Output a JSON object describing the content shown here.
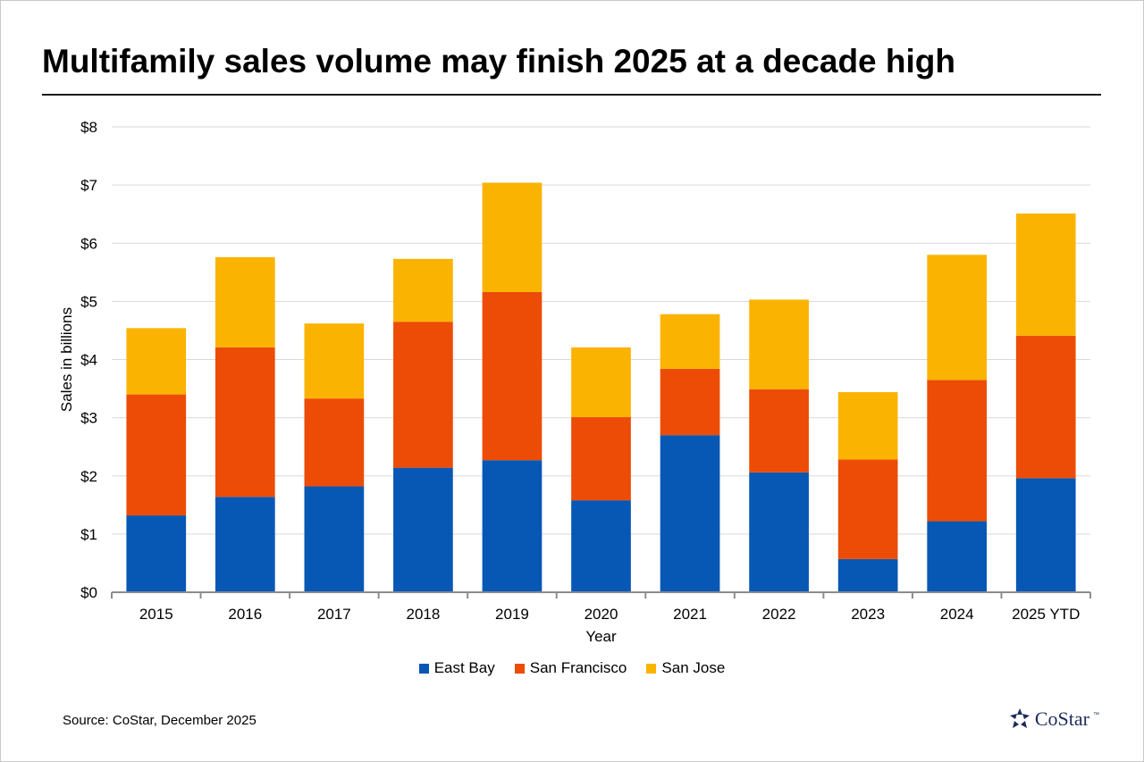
{
  "title": "Multifamily sales volume may finish 2025 at a decade high",
  "source": "Source: CoStar, December 2025",
  "logo": {
    "text": "CoStar",
    "tm": "™",
    "icon": "costar-star-icon"
  },
  "chart_data": {
    "type": "bar",
    "stacked": true,
    "title": "Multifamily sales volume may finish 2025 at a decade high",
    "xlabel": "Year",
    "ylabel": "Sales in billions",
    "ylim": [
      0,
      8
    ],
    "yticks": [
      0,
      1,
      2,
      3,
      4,
      5,
      6,
      7,
      8
    ],
    "ytick_labels": [
      "$0",
      "$1",
      "$2",
      "$3",
      "$4",
      "$5",
      "$6",
      "$7",
      "$8"
    ],
    "grid": true,
    "legend_position": "bottom",
    "categories": [
      "2015",
      "2016",
      "2017",
      "2018",
      "2019",
      "2020",
      "2021",
      "2022",
      "2023",
      "2024",
      "2025 YTD"
    ],
    "series": [
      {
        "name": "East Bay",
        "color": "#0757b5",
        "values": [
          1.32,
          1.64,
          1.82,
          2.14,
          2.27,
          1.58,
          2.7,
          2.06,
          0.57,
          1.22,
          1.96
        ]
      },
      {
        "name": "San Francisco",
        "color": "#ec4c06",
        "values": [
          2.08,
          2.57,
          1.51,
          2.51,
          2.89,
          1.43,
          1.14,
          1.43,
          1.71,
          2.43,
          2.45
        ]
      },
      {
        "name": "San Jose",
        "color": "#fbb301",
        "values": [
          1.14,
          1.55,
          1.29,
          1.08,
          1.88,
          1.2,
          0.94,
          1.54,
          1.16,
          2.15,
          2.1
        ]
      }
    ]
  }
}
